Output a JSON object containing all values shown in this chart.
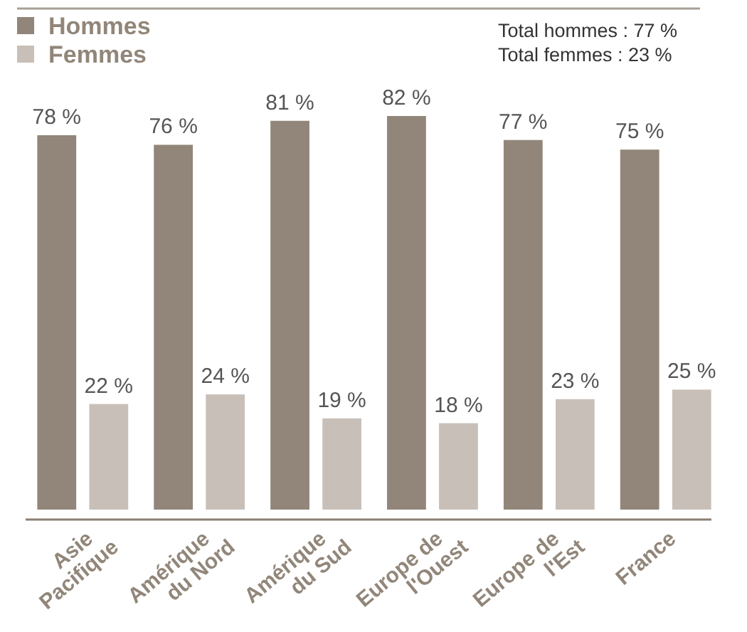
{
  "chart_data": {
    "type": "bar",
    "categories": [
      "Asie\nPacifique",
      "Amérique\ndu Nord",
      "Amérique\ndu Sud",
      "Europe de\nl'Ouest",
      "Europe de\nl'Est",
      "France"
    ],
    "series": [
      {
        "name": "Hommes",
        "color": "#918679",
        "values": [
          78,
          76,
          81,
          82,
          77,
          75
        ],
        "value_labels": [
          "78 %",
          "76 %",
          "81 %",
          "82 %",
          "77 %",
          "75 %"
        ]
      },
      {
        "name": "Femmes",
        "color": "#c8c0b8",
        "values": [
          22,
          24,
          19,
          18,
          23,
          25
        ],
        "value_labels": [
          "22 %",
          "24 %",
          "19 %",
          "18 %",
          "23 %",
          "25 %"
        ]
      }
    ],
    "legend": "top left",
    "grid": false,
    "annotations": [
      "Total hommes : 77 %",
      "Total femmes : 23 %"
    ]
  }
}
